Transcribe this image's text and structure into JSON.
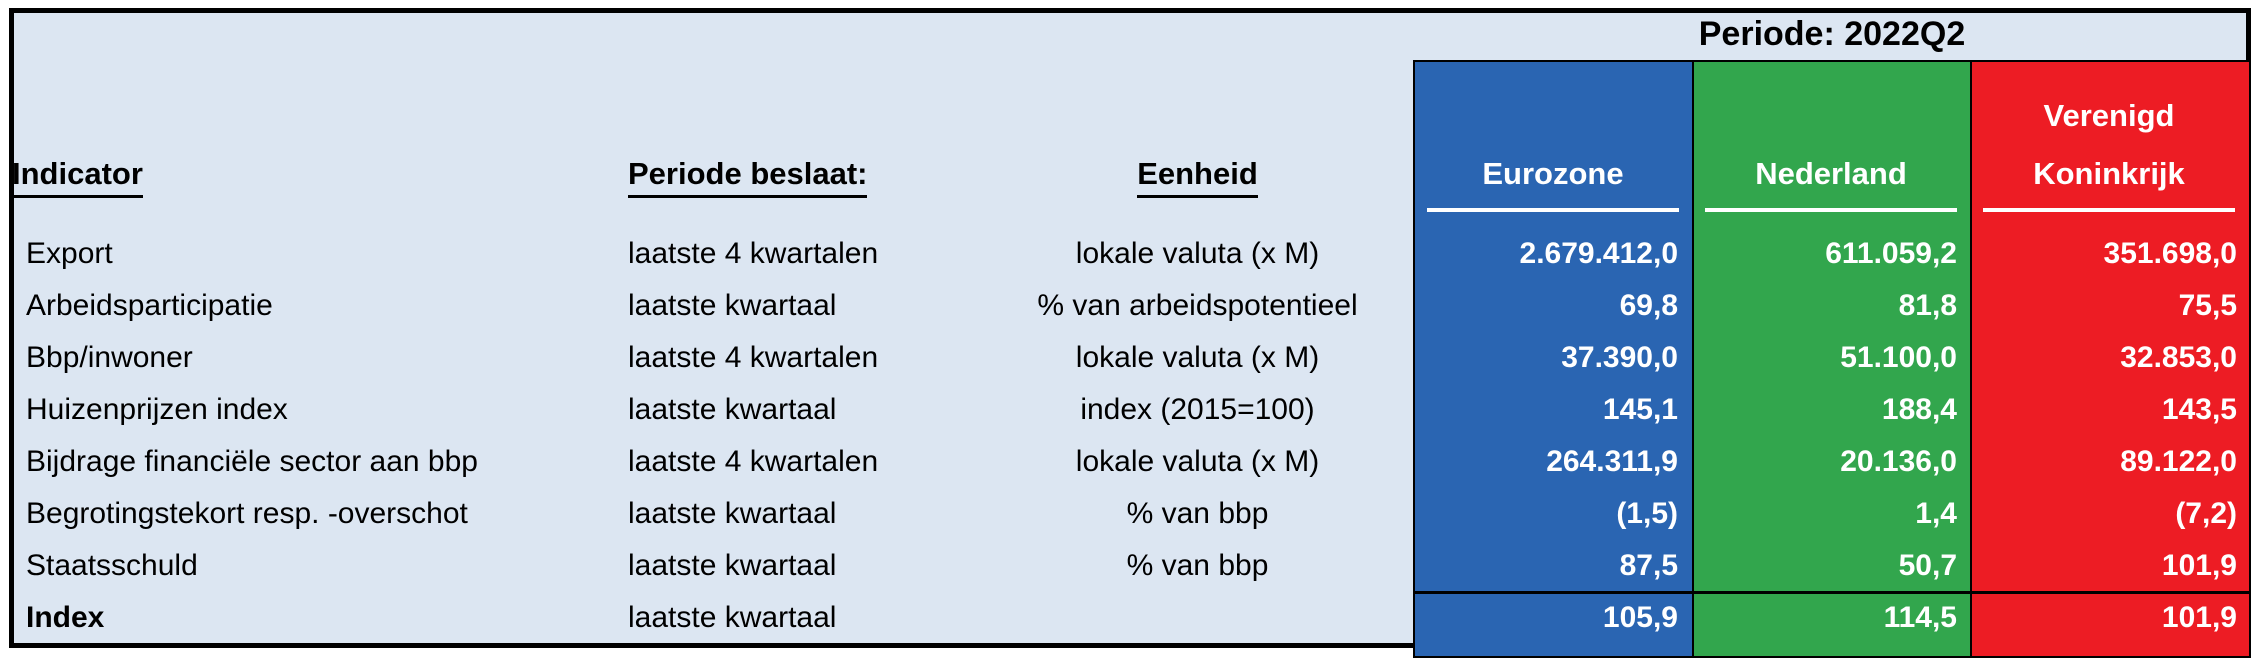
{
  "period_header": "Periode: 2022Q2",
  "headers": {
    "indicator": "Indicator",
    "period": "Periode beslaat:",
    "unit": "Eenheid"
  },
  "regions": [
    {
      "name": "Eurozone",
      "lines": [
        "Eurozone"
      ],
      "color": "#2A65B2"
    },
    {
      "name": "Nederland",
      "lines": [
        "Nederland"
      ],
      "color": "#32A64D"
    },
    {
      "name": "Verenigd Koninkrijk",
      "lines": [
        "Verenigd",
        "Koninkrijk"
      ],
      "color": "#ED1C24"
    }
  ],
  "colors": {
    "table_background": "#DCE6F2",
    "border": "#000000",
    "value_text": "#FFFFFF"
  },
  "rows": [
    {
      "indicator": "Export",
      "period": "laatste 4 kwartalen",
      "unit": "lokale valuta (x M)",
      "eurozone": "2.679.412,0",
      "nederland": "611.059,2",
      "uk": "351.698,0",
      "bold": false
    },
    {
      "indicator": "Arbeidsparticipatie",
      "period": "laatste kwartaal",
      "unit": "% van arbeidspotentieel",
      "eurozone": "69,8",
      "nederland": "81,8",
      "uk": "75,5",
      "bold": false
    },
    {
      "indicator": "Bbp/inwoner",
      "period": "laatste 4 kwartalen",
      "unit": "lokale valuta (x M)",
      "eurozone": "37.390,0",
      "nederland": "51.100,0",
      "uk": "32.853,0",
      "bold": false
    },
    {
      "indicator": "Huizenprijzen index",
      "period": "laatste kwartaal",
      "unit": "index (2015=100)",
      "eurozone": "145,1",
      "nederland": "188,4",
      "uk": "143,5",
      "bold": false
    },
    {
      "indicator": "Bijdrage financiële sector aan bbp",
      "period": "laatste 4 kwartalen",
      "unit": "lokale valuta (x M)",
      "eurozone": "264.311,9",
      "nederland": "20.136,0",
      "uk": "89.122,0",
      "bold": false
    },
    {
      "indicator": "Begrotingstekort resp. -overschot",
      "period": "laatste kwartaal",
      "unit": "% van bbp",
      "eurozone": "(1,5)",
      "nederland": "1,4",
      "uk": "(7,2)",
      "bold": false
    },
    {
      "indicator": "Staatsschuld",
      "period": "laatste kwartaal",
      "unit": "% van bbp",
      "eurozone": "87,5",
      "nederland": "50,7",
      "uk": "101,9",
      "bold": false
    },
    {
      "indicator": "Index",
      "period": "laatste kwartaal",
      "unit": "",
      "eurozone": "105,9",
      "nederland": "114,5",
      "uk": "101,9",
      "bold": true
    }
  ],
  "chart_data": {
    "type": "table",
    "title": "Periode: 2022Q2",
    "columns": [
      "Indicator",
      "Periode beslaat:",
      "Eenheid",
      "Eurozone",
      "Nederland",
      "Verenigd Koninkrijk"
    ],
    "rows": [
      [
        "Export",
        "laatste 4 kwartalen",
        "lokale valuta (x M)",
        "2.679.412,0",
        "611.059,2",
        "351.698,0"
      ],
      [
        "Arbeidsparticipatie",
        "laatste kwartaal",
        "% van arbeidspotentieel",
        "69,8",
        "81,8",
        "75,5"
      ],
      [
        "Bbp/inwoner",
        "laatste 4 kwartalen",
        "lokale valuta (x M)",
        "37.390,0",
        "51.100,0",
        "32.853,0"
      ],
      [
        "Huizenprijzen index",
        "laatste kwartaal",
        "index (2015=100)",
        "145,1",
        "188,4",
        "143,5"
      ],
      [
        "Bijdrage financiële sector aan bbp",
        "laatste 4 kwartalen",
        "lokale valuta (x M)",
        "264.311,9",
        "20.136,0",
        "89.122,0"
      ],
      [
        "Begrotingstekort resp. -overschot",
        "laatste kwartaal",
        "% van bbp",
        "(1,5)",
        "1,4",
        "(7,2)"
      ],
      [
        "Staatsschuld",
        "laatste kwartaal",
        "% van bbp",
        "87,5",
        "50,7",
        "101,9"
      ],
      [
        "Index",
        "laatste kwartaal",
        "",
        "105,9",
        "114,5",
        "101,9"
      ]
    ]
  }
}
